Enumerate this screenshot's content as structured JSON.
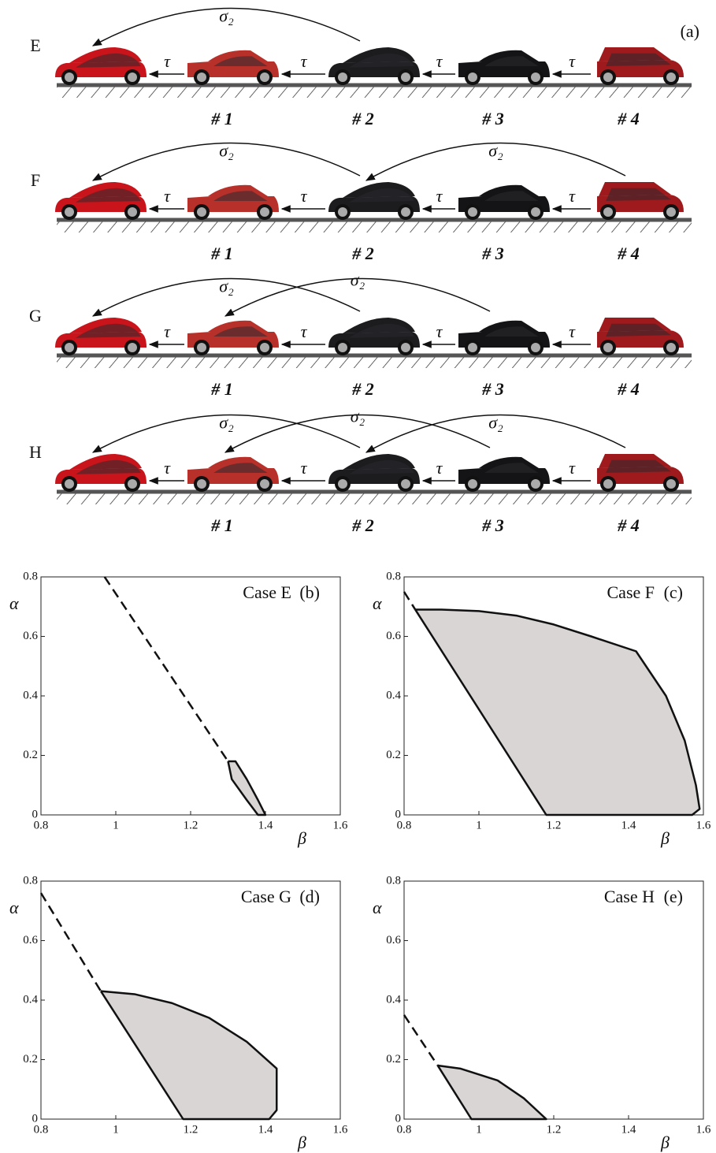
{
  "diagram": {
    "panel_label": "(a)",
    "rows": [
      {
        "label": "E",
        "sigma_labels": [
          "σ₂"
        ],
        "tau_labels": [
          "τ",
          "τ",
          "τ",
          "τ"
        ],
        "car_labels": [
          "# 1",
          "# 2",
          "# 3",
          "# 4"
        ]
      },
      {
        "label": "F",
        "sigma_labels": [
          "σ₂",
          "σ₂"
        ],
        "tau_labels": [
          "τ",
          "τ",
          "τ",
          "τ"
        ],
        "car_labels": [
          "# 1",
          "# 2",
          "# 3",
          "# 4"
        ]
      },
      {
        "label": "G",
        "sigma_labels": [
          "σ₂",
          "σ₂"
        ],
        "tau_labels": [
          "τ",
          "τ",
          "τ",
          "τ"
        ],
        "car_labels": [
          "# 1",
          "# 2",
          "# 3",
          "# 4"
        ]
      },
      {
        "label": "H",
        "sigma_labels": [
          "σ₂",
          "σ₂",
          "σ₂"
        ],
        "tau_labels": [
          "τ",
          "τ",
          "τ",
          "τ"
        ],
        "car_labels": [
          "# 1",
          "# 2",
          "# 3",
          "# 4"
        ]
      }
    ]
  },
  "chart_data": [
    {
      "type": "region",
      "title": "Case E",
      "panel_label": "(b)",
      "x_label": "β",
      "y_label": "α",
      "xlim": [
        0.8,
        1.6
      ],
      "ylim": [
        0,
        0.8
      ],
      "xticks": [
        0.8,
        1,
        1.2,
        1.4,
        1.6
      ],
      "yticks": [
        0,
        0.2,
        0.4,
        0.6,
        0.8
      ],
      "fill": "#d9d5d5",
      "lines": [
        {
          "style": "dashed",
          "x": [
            0.97,
            1.3
          ],
          "y": [
            0.8,
            0.18
          ]
        }
      ],
      "region": {
        "x": [
          1.3,
          1.32,
          1.35,
          1.38,
          1.4,
          1.38,
          1.35,
          1.31,
          1.3
        ],
        "y": [
          0.18,
          0.18,
          0.12,
          0.05,
          0,
          0,
          0.05,
          0.12,
          0.18
        ]
      }
    },
    {
      "type": "region",
      "title": "Case F",
      "panel_label": "(c)",
      "x_label": "β",
      "y_label": "α",
      "xlim": [
        0.8,
        1.6
      ],
      "ylim": [
        0,
        0.8
      ],
      "xticks": [
        0.8,
        1,
        1.2,
        1.4,
        1.6
      ],
      "yticks": [
        0,
        0.2,
        0.4,
        0.6,
        0.8
      ],
      "fill": "#d9d5d5",
      "lines": [
        {
          "style": "dashed",
          "x": [
            0.8,
            0.83
          ],
          "y": [
            0.75,
            0.69
          ]
        }
      ],
      "region": {
        "x": [
          0.83,
          0.9,
          1.0,
          1.1,
          1.2,
          1.3,
          1.42,
          1.5,
          1.55,
          1.58,
          1.59,
          1.57,
          1.18,
          0.83
        ],
        "y": [
          0.69,
          0.69,
          0.685,
          0.67,
          0.64,
          0.6,
          0.55,
          0.4,
          0.25,
          0.1,
          0.02,
          0,
          0,
          0.69
        ]
      }
    },
    {
      "type": "region",
      "title": "Case G",
      "panel_label": "(d)",
      "x_label": "β",
      "y_label": "α",
      "xlim": [
        0.8,
        1.6
      ],
      "ylim": [
        0,
        0.8
      ],
      "xticks": [
        0.8,
        1,
        1.2,
        1.4,
        1.6
      ],
      "yticks": [
        0,
        0.2,
        0.4,
        0.6,
        0.8
      ],
      "fill": "#d9d5d5",
      "lines": [
        {
          "style": "dashed",
          "x": [
            0.8,
            0.96
          ],
          "y": [
            0.76,
            0.43
          ]
        }
      ],
      "region": {
        "x": [
          0.96,
          1.05,
          1.15,
          1.25,
          1.35,
          1.43,
          1.43,
          1.43,
          1.41,
          1.18,
          0.96
        ],
        "y": [
          0.43,
          0.42,
          0.39,
          0.34,
          0.26,
          0.17,
          0.1,
          0.03,
          0,
          0,
          0.43
        ]
      }
    },
    {
      "type": "region",
      "title": "Case H",
      "panel_label": "(e)",
      "x_label": "β",
      "y_label": "α",
      "xlim": [
        0.8,
        1.6
      ],
      "ylim": [
        0,
        0.8
      ],
      "xticks": [
        0.8,
        1,
        1.2,
        1.4,
        1.6
      ],
      "yticks": [
        0,
        0.2,
        0.4,
        0.6,
        0.8
      ],
      "fill": "#d9d5d5",
      "lines": [
        {
          "style": "dashed",
          "x": [
            0.8,
            0.89
          ],
          "y": [
            0.35,
            0.18
          ]
        }
      ],
      "region": {
        "x": [
          0.89,
          0.95,
          1.05,
          1.12,
          1.18,
          0.98,
          0.89
        ],
        "y": [
          0.18,
          0.17,
          0.13,
          0.07,
          0,
          0,
          0.18
        ]
      }
    }
  ]
}
